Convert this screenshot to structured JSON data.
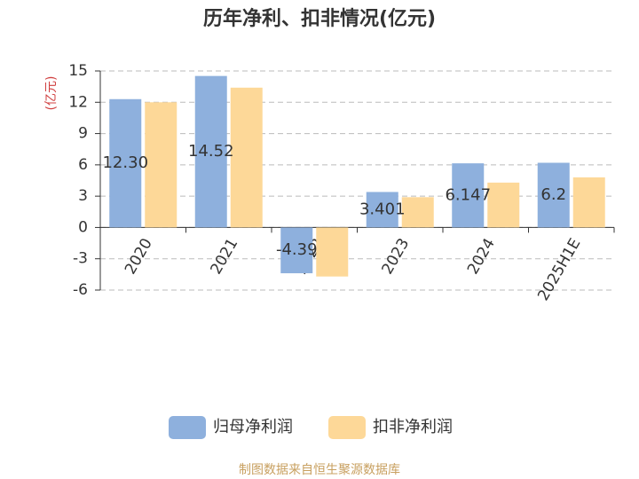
{
  "chart_data": {
    "type": "bar",
    "title": "历年净利、扣非情况(亿元)",
    "y_label": "(亿元)",
    "categories": [
      "2020",
      "2021",
      "2022",
      "2023",
      "2024",
      "2025H1E"
    ],
    "series": [
      {
        "name": "归母净利润",
        "color": "#8eb0dd",
        "values": [
          12.3,
          14.52,
          -4.39,
          3.401,
          6.147,
          6.2
        ],
        "value_labels": [
          "12.30",
          "14.52",
          "-4.39",
          "3.401",
          "6.147",
          "6.2"
        ]
      },
      {
        "name": "扣非净利润",
        "color": "#fdd898",
        "values": [
          12.0,
          13.4,
          -4.7,
          2.9,
          4.3,
          4.8
        ]
      }
    ],
    "ylim": [
      -6,
      15
    ],
    "yticks": [
      -6,
      -3,
      0,
      3,
      6,
      9,
      12,
      15
    ],
    "grid": true,
    "source": "制图数据来自恒生聚源数据库"
  }
}
